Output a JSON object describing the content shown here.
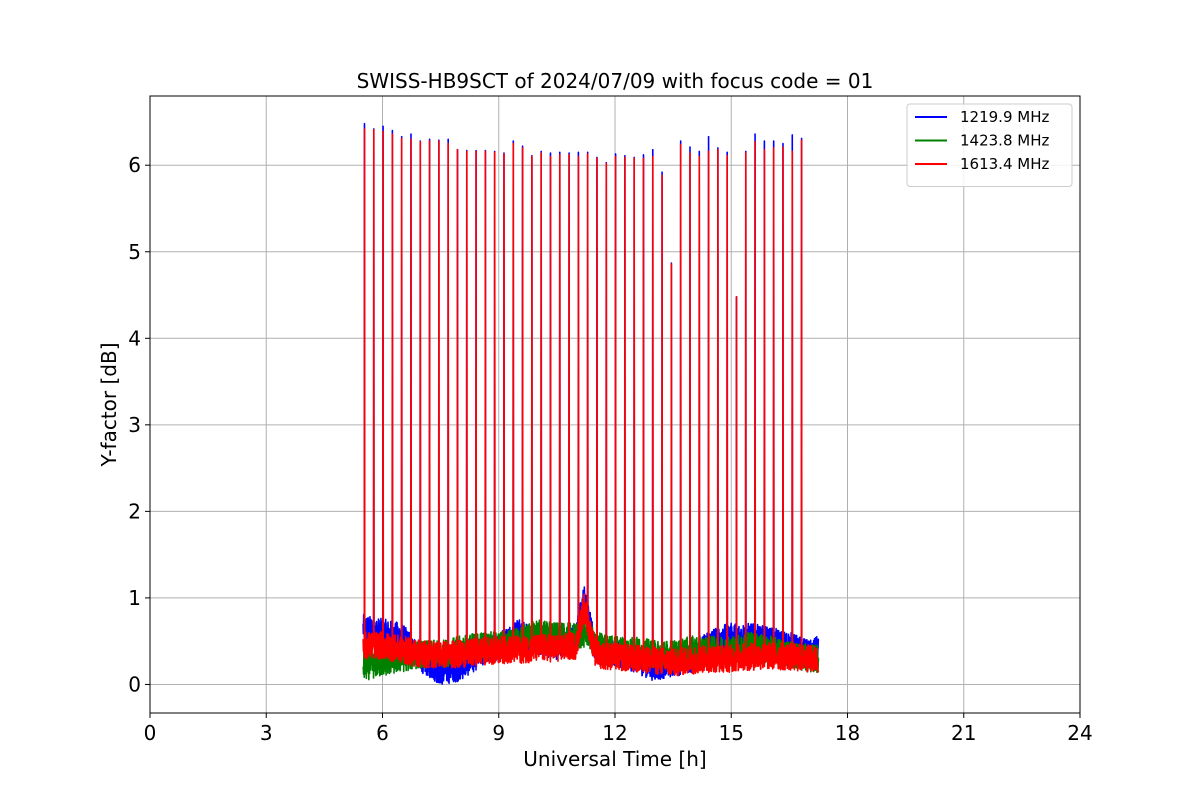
{
  "chart_data": {
    "type": "line",
    "title": "SWISS-HB9SCT of 2024/07/09 with focus code = 01",
    "xlabel": "Universal Time [h]",
    "ylabel": "Y-factor [dB]",
    "xlim": [
      0,
      24
    ],
    "ylim": [
      -0.33,
      6.8
    ],
    "x_ticks": [
      0,
      3,
      6,
      9,
      12,
      15,
      18,
      21,
      24
    ],
    "y_ticks": [
      0,
      1,
      2,
      3,
      4,
      5,
      6
    ],
    "grid": true,
    "legend_position": "upper right",
    "data_start": 5.5,
    "data_end": 17.25,
    "series": [
      {
        "name": "1219.9 MHz",
        "color": "#0000ff",
        "baseline": [
          [
            5.5,
            0.65
          ],
          [
            6.0,
            0.6
          ],
          [
            6.5,
            0.55
          ],
          [
            7.0,
            0.3
          ],
          [
            7.5,
            0.15
          ],
          [
            8.0,
            0.2
          ],
          [
            8.5,
            0.35
          ],
          [
            9.0,
            0.45
          ],
          [
            9.5,
            0.6
          ],
          [
            10.0,
            0.5
          ],
          [
            10.5,
            0.45
          ],
          [
            11.0,
            0.55
          ],
          [
            11.2,
            1.0
          ],
          [
            11.5,
            0.4
          ],
          [
            12.0,
            0.35
          ],
          [
            12.5,
            0.3
          ],
          [
            13.0,
            0.2
          ],
          [
            13.5,
            0.25
          ],
          [
            14.0,
            0.3
          ],
          [
            14.5,
            0.5
          ],
          [
            15.0,
            0.55
          ],
          [
            15.5,
            0.55
          ],
          [
            16.0,
            0.5
          ],
          [
            16.5,
            0.45
          ],
          [
            17.0,
            0.35
          ],
          [
            17.25,
            0.4
          ]
        ],
        "spikes": [
          [
            5.53,
            6.48
          ],
          [
            5.77,
            6.42
          ],
          [
            6.01,
            6.45
          ],
          [
            6.25,
            6.4
          ],
          [
            6.49,
            6.33
          ],
          [
            6.73,
            6.36
          ],
          [
            6.97,
            6.28
          ],
          [
            7.21,
            6.3
          ],
          [
            7.45,
            6.29
          ],
          [
            7.69,
            6.3
          ],
          [
            7.93,
            6.18
          ],
          [
            8.17,
            6.17
          ],
          [
            8.41,
            6.17
          ],
          [
            8.65,
            6.17
          ],
          [
            8.89,
            6.16
          ],
          [
            9.13,
            6.14
          ],
          [
            9.37,
            6.28
          ],
          [
            9.61,
            6.22
          ],
          [
            9.85,
            6.11
          ],
          [
            10.09,
            6.16
          ],
          [
            10.33,
            6.14
          ],
          [
            10.57,
            6.15
          ],
          [
            10.81,
            6.14
          ],
          [
            11.05,
            6.15
          ],
          [
            11.29,
            6.15
          ],
          [
            11.53,
            6.09
          ],
          [
            11.77,
            6.03
          ],
          [
            12.01,
            6.13
          ],
          [
            12.25,
            6.11
          ],
          [
            12.49,
            6.09
          ],
          [
            12.73,
            6.12
          ],
          [
            12.97,
            6.18
          ],
          [
            13.21,
            5.92
          ],
          [
            13.45,
            4.87
          ],
          [
            13.69,
            6.28
          ],
          [
            13.93,
            6.21
          ],
          [
            14.17,
            6.16
          ],
          [
            14.41,
            6.33
          ],
          [
            14.65,
            6.2
          ],
          [
            14.89,
            6.15
          ],
          [
            15.13,
            4.48
          ],
          [
            15.37,
            6.16
          ],
          [
            15.61,
            6.36
          ],
          [
            15.85,
            6.28
          ],
          [
            16.09,
            6.28
          ],
          [
            16.33,
            6.25
          ],
          [
            16.57,
            6.35
          ],
          [
            16.81,
            6.31
          ]
        ]
      },
      {
        "name": "1423.8 MHz",
        "color": "#008000",
        "baseline": [
          [
            5.5,
            0.2
          ],
          [
            6.0,
            0.25
          ],
          [
            6.5,
            0.3
          ],
          [
            7.0,
            0.35
          ],
          [
            7.5,
            0.35
          ],
          [
            8.0,
            0.4
          ],
          [
            8.5,
            0.45
          ],
          [
            9.0,
            0.45
          ],
          [
            9.5,
            0.5
          ],
          [
            10.0,
            0.6
          ],
          [
            10.5,
            0.55
          ],
          [
            11.0,
            0.55
          ],
          [
            11.3,
            0.6
          ],
          [
            11.5,
            0.45
          ],
          [
            12.0,
            0.4
          ],
          [
            12.5,
            0.4
          ],
          [
            13.0,
            0.35
          ],
          [
            13.5,
            0.35
          ],
          [
            14.0,
            0.4
          ],
          [
            14.5,
            0.4
          ],
          [
            15.0,
            0.4
          ],
          [
            15.5,
            0.45
          ],
          [
            16.0,
            0.4
          ],
          [
            16.5,
            0.35
          ],
          [
            17.0,
            0.3
          ],
          [
            17.25,
            0.3
          ]
        ],
        "spikes": []
      },
      {
        "name": "1613.4 MHz",
        "color": "#ff0000",
        "baseline": [
          [
            5.5,
            0.45
          ],
          [
            6.0,
            0.45
          ],
          [
            6.5,
            0.4
          ],
          [
            7.0,
            0.35
          ],
          [
            7.5,
            0.35
          ],
          [
            8.0,
            0.35
          ],
          [
            8.5,
            0.38
          ],
          [
            9.0,
            0.4
          ],
          [
            9.5,
            0.4
          ],
          [
            10.0,
            0.42
          ],
          [
            10.5,
            0.42
          ],
          [
            11.0,
            0.45
          ],
          [
            11.2,
            0.9
          ],
          [
            11.5,
            0.35
          ],
          [
            12.0,
            0.32
          ],
          [
            12.5,
            0.3
          ],
          [
            13.0,
            0.28
          ],
          [
            13.5,
            0.25
          ],
          [
            14.0,
            0.28
          ],
          [
            14.5,
            0.3
          ],
          [
            15.0,
            0.3
          ],
          [
            15.5,
            0.32
          ],
          [
            16.0,
            0.33
          ],
          [
            16.5,
            0.32
          ],
          [
            17.0,
            0.3
          ],
          [
            17.25,
            0.28
          ]
        ],
        "spikes": [
          [
            5.53,
            6.42
          ],
          [
            5.77,
            6.41
          ],
          [
            6.01,
            6.39
          ],
          [
            6.25,
            6.36
          ],
          [
            6.49,
            6.31
          ],
          [
            6.73,
            6.3
          ],
          [
            6.97,
            6.27
          ],
          [
            7.21,
            6.28
          ],
          [
            7.45,
            6.28
          ],
          [
            7.69,
            6.25
          ],
          [
            7.93,
            6.18
          ],
          [
            8.17,
            6.16
          ],
          [
            8.41,
            6.16
          ],
          [
            8.65,
            6.16
          ],
          [
            8.89,
            6.15
          ],
          [
            9.13,
            6.13
          ],
          [
            9.37,
            6.25
          ],
          [
            9.61,
            6.2
          ],
          [
            9.85,
            6.1
          ],
          [
            10.09,
            6.14
          ],
          [
            10.33,
            6.1
          ],
          [
            10.57,
            6.12
          ],
          [
            10.81,
            6.12
          ],
          [
            11.05,
            6.1
          ],
          [
            11.29,
            6.13
          ],
          [
            11.53,
            6.08
          ],
          [
            11.77,
            6.02
          ],
          [
            12.01,
            6.1
          ],
          [
            12.25,
            6.09
          ],
          [
            12.49,
            6.08
          ],
          [
            12.73,
            6.08
          ],
          [
            12.97,
            6.1
          ],
          [
            13.21,
            5.88
          ],
          [
            13.45,
            4.86
          ],
          [
            13.69,
            6.24
          ],
          [
            13.93,
            6.14
          ],
          [
            14.17,
            6.1
          ],
          [
            14.41,
            6.16
          ],
          [
            14.65,
            6.18
          ],
          [
            14.89,
            6.11
          ],
          [
            15.13,
            4.48
          ],
          [
            15.37,
            6.14
          ],
          [
            15.61,
            6.27
          ],
          [
            15.85,
            6.18
          ],
          [
            16.09,
            6.2
          ],
          [
            16.33,
            6.21
          ],
          [
            16.57,
            6.16
          ],
          [
            16.81,
            6.29
          ]
        ]
      }
    ]
  }
}
